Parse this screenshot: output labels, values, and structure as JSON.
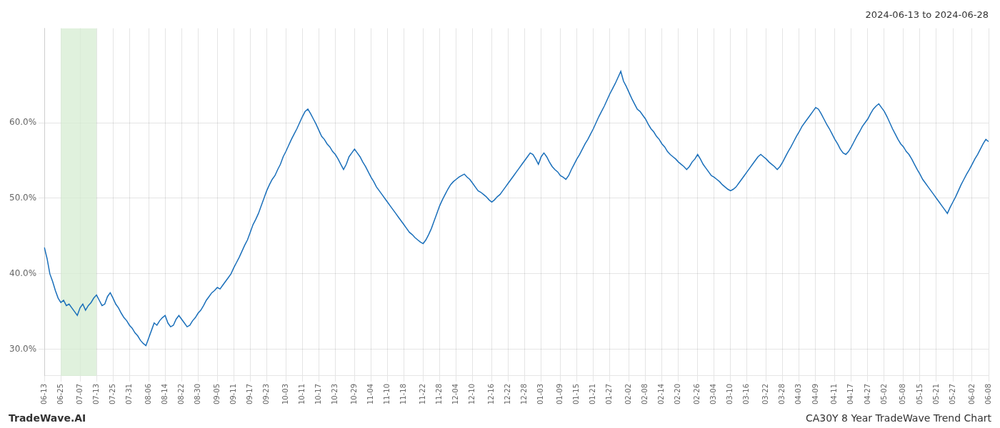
{
  "chart_data": {
    "type": "line",
    "title": "2024-06-13 to 2024-06-28",
    "annotations": [
      "TradeWave.AI",
      "CA30Y 8 Year TradeWave Trend Chart"
    ],
    "categories": [
      "06-13",
      null,
      null,
      null,
      null,
      null,
      "06-25",
      null,
      null,
      null,
      null,
      null,
      null,
      "07-07",
      null,
      null,
      null,
      null,
      null,
      "07-13",
      null,
      null,
      null,
      null,
      null,
      "07-25",
      null,
      null,
      null,
      null,
      null,
      "07-31",
      null,
      null,
      null,
      null,
      null,
      null,
      "08-06",
      null,
      null,
      null,
      null,
      null,
      "08-14",
      null,
      null,
      null,
      null,
      null,
      "08-22",
      null,
      null,
      null,
      null,
      null,
      "08-30",
      null,
      null,
      null,
      null,
      null,
      null,
      "09-05",
      null,
      null,
      null,
      null,
      null,
      "09-11",
      null,
      null,
      null,
      null,
      null,
      "09-17",
      null,
      null,
      null,
      null,
      null,
      "09-23",
      null,
      null,
      null,
      null,
      null,
      null,
      "10-03",
      null,
      null,
      null,
      null,
      null,
      "10-11",
      null,
      null,
      null,
      null,
      null,
      "10-17",
      null,
      null,
      null,
      null,
      null,
      "10-23",
      null,
      null,
      null,
      null,
      null,
      null,
      "10-29",
      null,
      null,
      null,
      null,
      null,
      "11-04",
      null,
      null,
      null,
      null,
      null,
      "11-10",
      null,
      null,
      null,
      null,
      null,
      "11-18",
      null,
      null,
      null,
      null,
      null,
      null,
      "11-22",
      null,
      null,
      null,
      null,
      null,
      "11-28",
      null,
      null,
      null,
      null,
      null,
      "12-04",
      null,
      null,
      null,
      null,
      null,
      "12-10",
      null,
      null,
      null,
      null,
      null,
      null,
      "12-16",
      null,
      null,
      null,
      null,
      null,
      "12-22",
      null,
      null,
      null,
      null,
      null,
      "12-28",
      null,
      null,
      null,
      null,
      null,
      "01-03",
      null,
      null,
      null,
      null,
      null,
      null,
      "01-09",
      null,
      null,
      null,
      null,
      null,
      "01-15",
      null,
      null,
      null,
      null,
      null,
      "01-21",
      null,
      null,
      null,
      null,
      null,
      "01-27",
      null,
      null,
      null,
      null,
      null,
      null,
      "02-02",
      null,
      null,
      null,
      null,
      null,
      "02-08",
      null,
      null,
      null,
      null,
      null,
      "02-14",
      null,
      null,
      null,
      null,
      null,
      "02-20",
      null,
      null,
      null,
      null,
      null,
      null,
      "02-26",
      null,
      null,
      null,
      null,
      null,
      "03-04",
      null,
      null,
      null,
      null,
      null,
      "03-10",
      null,
      null,
      null,
      null,
      null,
      "03-16",
      null,
      null,
      null,
      null,
      null,
      null,
      "03-22",
      null,
      null,
      null,
      null,
      null,
      "03-28",
      null,
      null,
      null,
      null,
      null,
      "04-03",
      null,
      null,
      null,
      null,
      null,
      "04-09",
      null,
      null,
      null,
      null,
      null,
      null,
      "04-11",
      null,
      null,
      null,
      null,
      null,
      "04-17",
      null,
      null,
      null,
      null,
      null,
      "04-27",
      null,
      null,
      null,
      null,
      null,
      "05-02",
      null,
      null,
      null,
      null,
      null,
      null,
      "05-08",
      null,
      null,
      null,
      null,
      null,
      "05-15",
      null,
      null,
      null,
      null,
      null,
      "05-21",
      null,
      null,
      null,
      null,
      null,
      "05-27",
      null,
      null,
      null,
      null,
      null,
      null,
      "06-02",
      null,
      null,
      null,
      null,
      null,
      "06-08"
    ],
    "values": [
      0.435,
      0.42,
      0.4,
      0.39,
      0.378,
      0.368,
      0.362,
      0.365,
      0.358,
      0.36,
      0.355,
      0.35,
      0.345,
      0.355,
      0.36,
      0.352,
      0.358,
      0.362,
      0.368,
      0.372,
      0.365,
      0.358,
      0.36,
      0.37,
      0.375,
      0.368,
      0.36,
      0.355,
      0.348,
      0.342,
      0.338,
      0.332,
      0.328,
      0.322,
      0.318,
      0.312,
      0.308,
      0.305,
      0.315,
      0.325,
      0.335,
      0.332,
      0.338,
      0.342,
      0.345,
      0.335,
      0.33,
      0.332,
      0.34,
      0.345,
      0.34,
      0.335,
      0.33,
      0.332,
      0.338,
      0.342,
      0.348,
      0.352,
      0.358,
      0.365,
      0.37,
      0.375,
      0.378,
      0.382,
      0.38,
      0.385,
      0.39,
      0.395,
      0.4,
      0.408,
      0.415,
      0.422,
      0.43,
      0.438,
      0.445,
      0.455,
      0.465,
      0.472,
      0.48,
      0.49,
      0.5,
      0.51,
      0.518,
      0.525,
      0.53,
      0.538,
      0.545,
      0.555,
      0.562,
      0.57,
      0.578,
      0.585,
      0.592,
      0.6,
      0.608,
      0.615,
      0.618,
      0.612,
      0.605,
      0.598,
      0.59,
      0.582,
      0.578,
      0.572,
      0.568,
      0.562,
      0.558,
      0.552,
      0.545,
      0.538,
      0.545,
      0.555,
      0.56,
      0.565,
      0.56,
      0.555,
      0.548,
      0.542,
      0.535,
      0.528,
      0.522,
      0.515,
      0.51,
      0.505,
      0.5,
      0.495,
      0.49,
      0.485,
      0.48,
      0.475,
      0.47,
      0.465,
      0.46,
      0.455,
      0.452,
      0.448,
      0.445,
      0.442,
      0.44,
      0.445,
      0.452,
      0.46,
      0.47,
      0.48,
      0.49,
      0.498,
      0.505,
      0.512,
      0.518,
      0.522,
      0.525,
      0.528,
      0.53,
      0.532,
      0.528,
      0.525,
      0.52,
      0.515,
      0.51,
      0.508,
      0.505,
      0.502,
      0.498,
      0.495,
      0.498,
      0.502,
      0.505,
      0.51,
      0.515,
      0.52,
      0.525,
      0.53,
      0.535,
      0.54,
      0.545,
      0.55,
      0.555,
      0.56,
      0.558,
      0.552,
      0.545,
      0.555,
      0.56,
      0.555,
      0.548,
      0.542,
      0.538,
      0.535,
      0.53,
      0.528,
      0.525,
      0.53,
      0.538,
      0.545,
      0.552,
      0.558,
      0.565,
      0.572,
      0.578,
      0.585,
      0.592,
      0.6,
      0.608,
      0.615,
      0.622,
      0.63,
      0.638,
      0.645,
      0.652,
      0.66,
      0.668,
      0.655,
      0.648,
      0.64,
      0.632,
      0.625,
      0.618,
      0.615,
      0.61,
      0.605,
      0.598,
      0.592,
      0.588,
      0.582,
      0.578,
      0.572,
      0.568,
      0.562,
      0.558,
      0.555,
      0.552,
      0.548,
      0.545,
      0.542,
      0.538,
      0.542,
      0.548,
      0.552,
      0.558,
      0.552,
      0.545,
      0.54,
      0.535,
      0.53,
      0.528,
      0.525,
      0.522,
      0.518,
      0.515,
      0.512,
      0.51,
      0.512,
      0.515,
      0.52,
      0.525,
      0.53,
      0.535,
      0.54,
      0.545,
      0.55,
      0.555,
      0.558,
      0.555,
      0.552,
      0.548,
      0.545,
      0.542,
      0.538,
      0.542,
      0.548,
      0.555,
      0.562,
      0.568,
      0.575,
      0.582,
      0.588,
      0.595,
      0.6,
      0.605,
      0.61,
      0.615,
      0.62,
      0.618,
      0.612,
      0.605,
      0.598,
      0.592,
      0.585,
      0.578,
      0.572,
      0.565,
      0.56,
      0.558,
      0.562,
      0.568,
      0.575,
      0.582,
      0.588,
      0.595,
      0.6,
      0.605,
      0.612,
      0.618,
      0.622,
      0.625,
      0.62,
      0.615,
      0.608,
      0.6,
      0.592,
      0.585,
      0.578,
      0.572,
      0.568,
      0.562,
      0.558,
      0.552,
      0.545,
      0.538,
      0.532,
      0.525,
      0.52,
      0.515,
      0.51,
      0.505,
      0.5,
      0.495,
      0.49,
      0.485,
      0.48,
      0.488,
      0.495,
      0.502,
      0.51,
      0.518,
      0.525,
      0.532,
      0.538,
      0.545,
      0.552,
      0.558,
      0.565,
      0.572,
      0.578,
      0.575
    ],
    "color": "#1a6fba",
    "ylim": [
      0.265,
      0.725
    ],
    "yticks": [
      {
        "value": 0.3,
        "label": "30.0%"
      },
      {
        "value": 0.4,
        "label": "40.0%"
      },
      {
        "value": 0.5,
        "label": "50.0%"
      },
      {
        "value": 0.6,
        "label": "60.0%"
      }
    ],
    "grid": true,
    "shaded_region": {
      "from": "06-25",
      "to": "07-13",
      "color": "#d6ecd2"
    }
  }
}
